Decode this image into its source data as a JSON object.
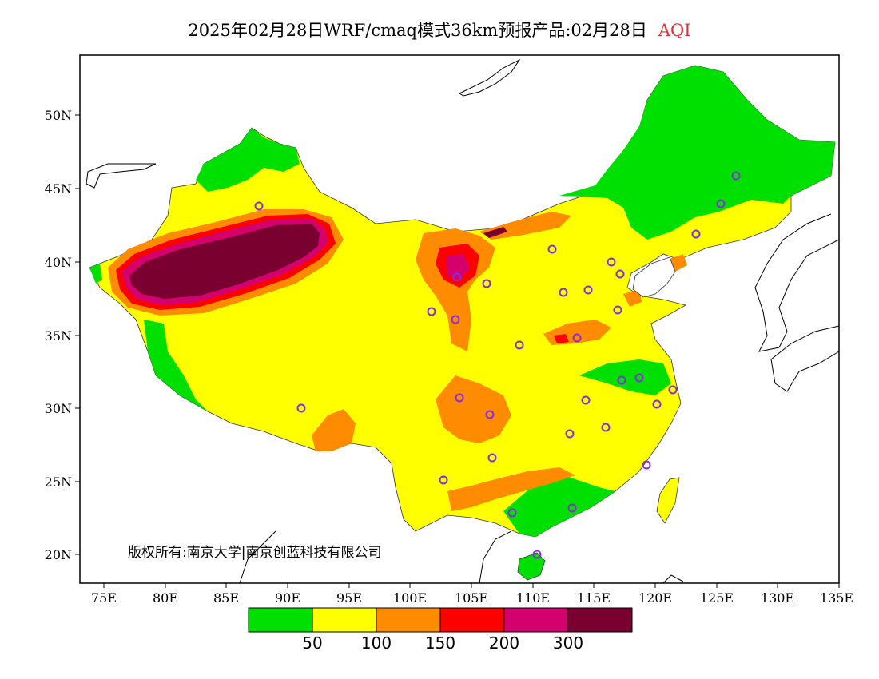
{
  "title": {
    "main": "2025年02月28日WRF/cmaq模式36km预报产品:02月28日",
    "variable": "AQI"
  },
  "copyright": "版权所有:南京大学|南京创蓝科技有限公司",
  "axes": {
    "lat_labels": [
      "50N",
      "45N",
      "40N",
      "35N",
      "30N",
      "25N",
      "20N"
    ],
    "lon_labels": [
      "75E",
      "80E",
      "85E",
      "90E",
      "95E",
      "100E",
      "105E",
      "110E",
      "115E",
      "120E",
      "125E",
      "130E",
      "135E"
    ]
  },
  "colorbar": {
    "colors": [
      "#00e000",
      "#ffff00",
      "#ff8c00",
      "#ff0000",
      "#d4006e",
      "#7a0030"
    ],
    "labels": [
      "50",
      "100",
      "150",
      "200",
      "300"
    ]
  },
  "colors": {
    "green": "#00e000",
    "yellow": "#ffff00",
    "orange": "#ff8c00",
    "red": "#ff0000",
    "magenta": "#d4006e",
    "maroon": "#7a0030",
    "city_marker": "#8a2be2",
    "title_accent": "#e0303a"
  }
}
